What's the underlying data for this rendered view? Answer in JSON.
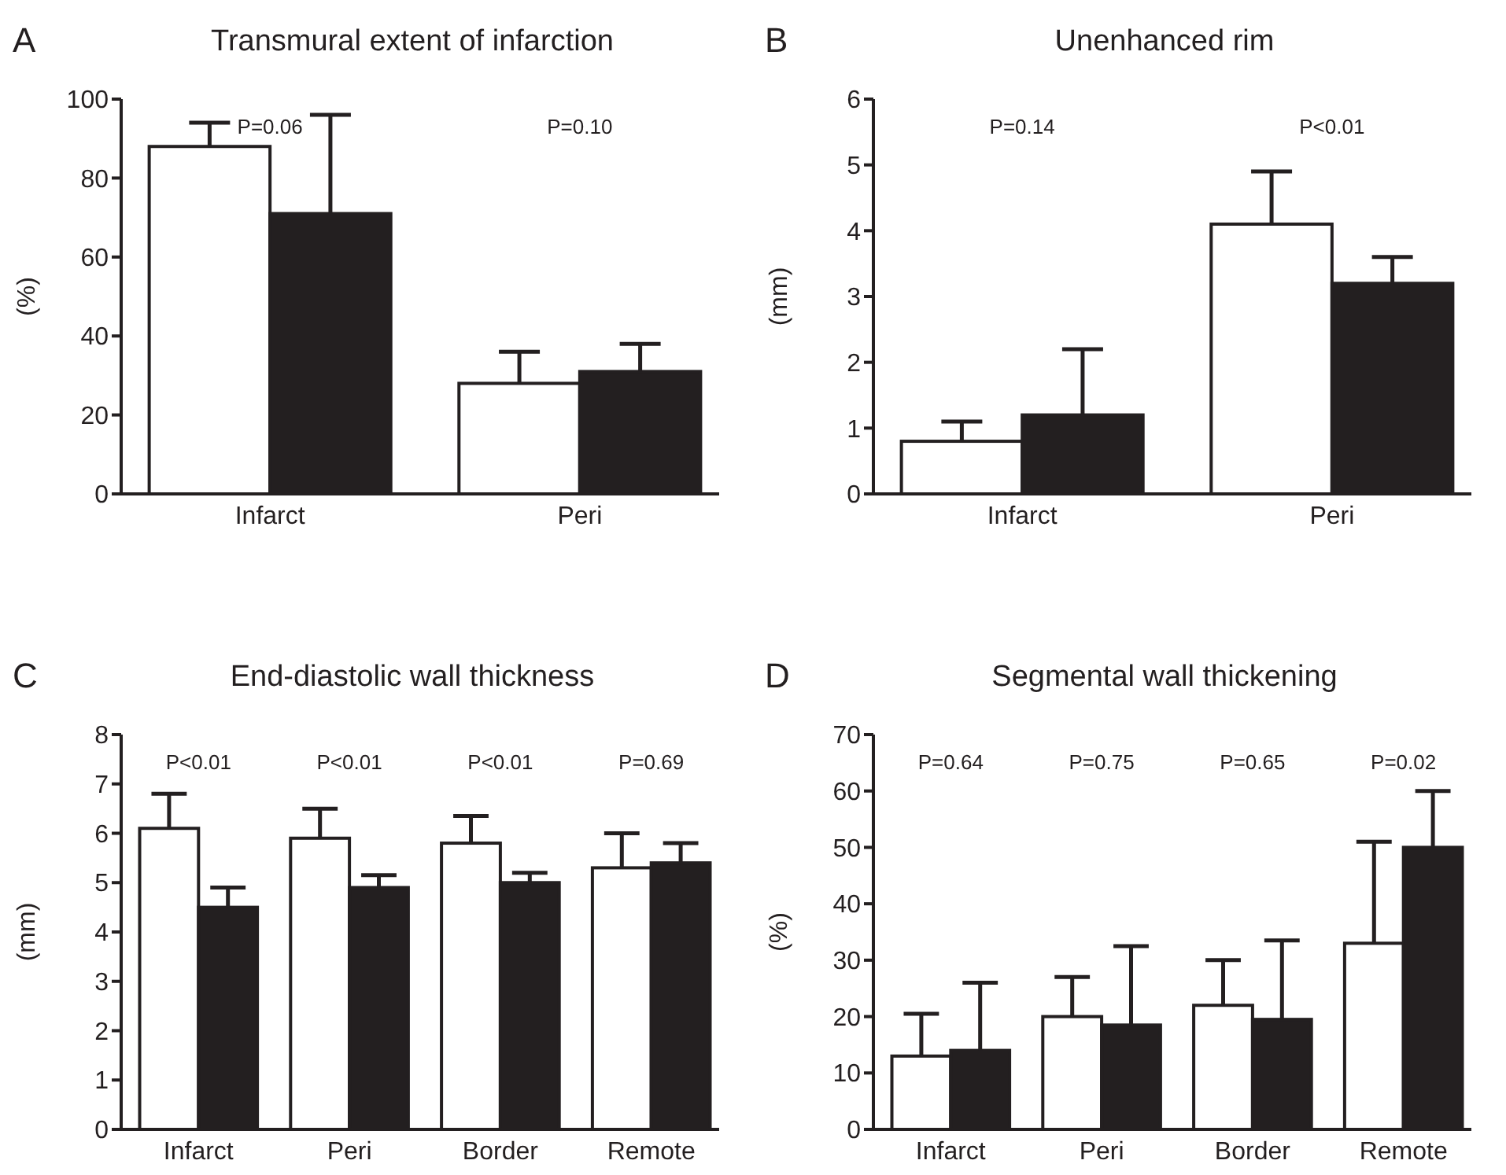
{
  "chart_data": [
    {
      "type": "bar",
      "title": "Transmural extent of infarction",
      "ylabel": "(%)",
      "categories": [
        "Infarct",
        "Peri"
      ],
      "ylim": [
        0,
        100
      ],
      "yticks": [
        0,
        20,
        40,
        60,
        80,
        100
      ],
      "grid": false,
      "series": [
        {
          "color": "#ffffff",
          "values": [
            88,
            28
          ],
          "errors": [
            [
              88,
              94
            ],
            [
              28,
              36
            ]
          ]
        },
        {
          "color": "#231f20",
          "values": [
            71,
            31
          ],
          "errors": [
            [
              71,
              96
            ],
            [
              31,
              38
            ]
          ]
        }
      ],
      "annotations": [
        "A",
        "P=0.06",
        "P=0.10"
      ]
    },
    {
      "type": "bar",
      "title": "Unenhanced rim",
      "ylabel": "(mm)",
      "categories": [
        "Infarct",
        "Peri"
      ],
      "ylim": [
        0,
        6
      ],
      "yticks": [
        0,
        1,
        2,
        3,
        4,
        5,
        6
      ],
      "grid": false,
      "series": [
        {
          "color": "#ffffff",
          "values": [
            0.8,
            4.1
          ],
          "errors": [
            [
              0.8,
              1.1
            ],
            [
              4.1,
              4.9
            ]
          ]
        },
        {
          "color": "#231f20",
          "values": [
            1.2,
            3.2
          ],
          "errors": [
            [
              1.2,
              2.2
            ],
            [
              3.2,
              3.6
            ]
          ]
        }
      ],
      "annotations": [
        "B",
        "P=0.14",
        "P<0.01"
      ]
    },
    {
      "type": "bar",
      "title": "End-diastolic wall thickness",
      "ylabel": "(mm)",
      "categories": [
        "Infarct",
        "Peri",
        "Border",
        "Remote"
      ],
      "ylim": [
        0,
        8
      ],
      "yticks": [
        0,
        1,
        2,
        3,
        4,
        5,
        6,
        7,
        8
      ],
      "grid": false,
      "series": [
        {
          "color": "#ffffff",
          "values": [
            6.1,
            5.9,
            5.8,
            5.3
          ],
          "errors": [
            [
              6.1,
              6.8
            ],
            [
              5.9,
              6.5
            ],
            [
              5.8,
              6.35
            ],
            [
              5.3,
              6.0
            ]
          ]
        },
        {
          "color": "#231f20",
          "values": [
            4.5,
            4.9,
            5.0,
            5.4
          ],
          "errors": [
            [
              4.5,
              4.9
            ],
            [
              4.9,
              5.15
            ],
            [
              5.0,
              5.2
            ],
            [
              5.4,
              5.8
            ]
          ]
        }
      ],
      "annotations": [
        "C",
        "P<0.01",
        "P<0.01",
        "P<0.01",
        "P=0.69"
      ]
    },
    {
      "type": "bar",
      "title": "Segmental wall thickening",
      "ylabel": "(%)",
      "categories": [
        "Infarct",
        "Peri",
        "Border",
        "Remote"
      ],
      "ylim": [
        0,
        70
      ],
      "yticks": [
        0,
        10,
        20,
        30,
        40,
        50,
        60,
        70
      ],
      "grid": false,
      "series": [
        {
          "color": "#ffffff",
          "values": [
            13,
            20,
            22,
            33
          ],
          "errors": [
            [
              13,
              20.5
            ],
            [
              20,
              27
            ],
            [
              22,
              30
            ],
            [
              33,
              51
            ]
          ]
        },
        {
          "color": "#231f20",
          "values": [
            14,
            18.5,
            19.5,
            50
          ],
          "errors": [
            [
              14,
              26
            ],
            [
              18.5,
              32.5
            ],
            [
              19.5,
              33.5
            ],
            [
              50,
              60
            ]
          ]
        }
      ],
      "annotations": [
        "D",
        "P=0.64",
        "P=0.75",
        "P=0.65",
        "P=0.02"
      ]
    }
  ]
}
